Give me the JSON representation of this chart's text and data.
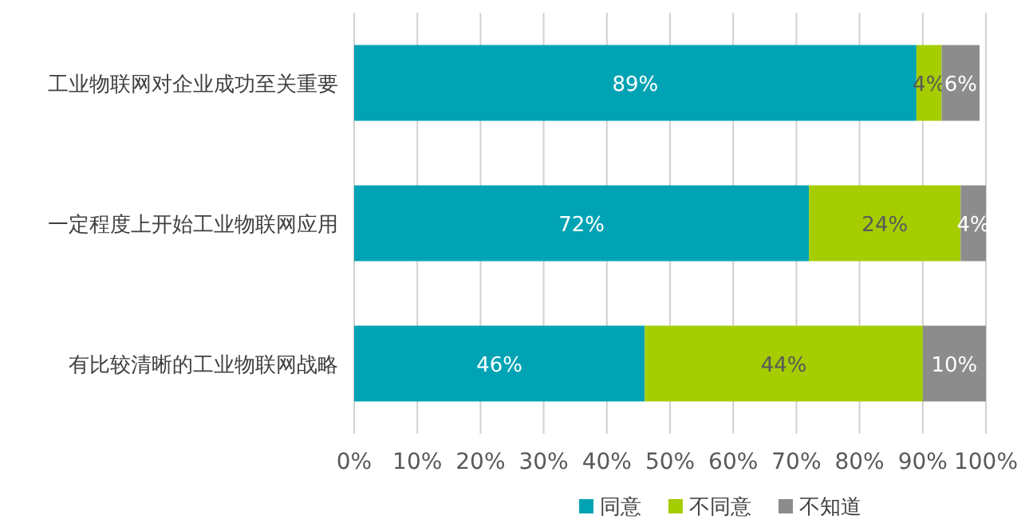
{
  "chart_data": {
    "type": "bar",
    "orientation": "horizontal",
    "stacked": true,
    "categories": [
      "工业物联网对企业成功至关重要",
      "一定程度上开始工业物联网应用",
      "有比较清晰的工业物联网战略"
    ],
    "series": [
      {
        "name": "同意",
        "color": "#00a3b4",
        "values": [
          89,
          72,
          46
        ],
        "value_labels": [
          "89%",
          "72%",
          "46%"
        ]
      },
      {
        "name": "不同意",
        "color": "#a5cd00",
        "values": [
          4,
          24,
          44
        ],
        "value_labels": [
          "4%",
          "24%",
          "44%"
        ]
      },
      {
        "name": "不知道",
        "color": "#8c8c8c",
        "values": [
          6,
          4,
          10
        ],
        "value_labels": [
          "6%",
          "4%",
          "10%"
        ]
      }
    ],
    "xlim": [
      0,
      100
    ],
    "xticks": [
      {
        "value": 0,
        "label": "0%"
      },
      {
        "value": 10,
        "label": "10%"
      },
      {
        "value": 20,
        "label": "20%"
      },
      {
        "value": 30,
        "label": "30%"
      },
      {
        "value": 40,
        "label": "40%"
      },
      {
        "value": 50,
        "label": "50%"
      },
      {
        "value": 60,
        "label": "60%"
      },
      {
        "value": 70,
        "label": "70%"
      },
      {
        "value": 80,
        "label": "80%"
      },
      {
        "value": 90,
        "label": "90%"
      },
      {
        "value": 100,
        "label": "100%"
      }
    ],
    "grid": "x",
    "legend": "bottom"
  }
}
